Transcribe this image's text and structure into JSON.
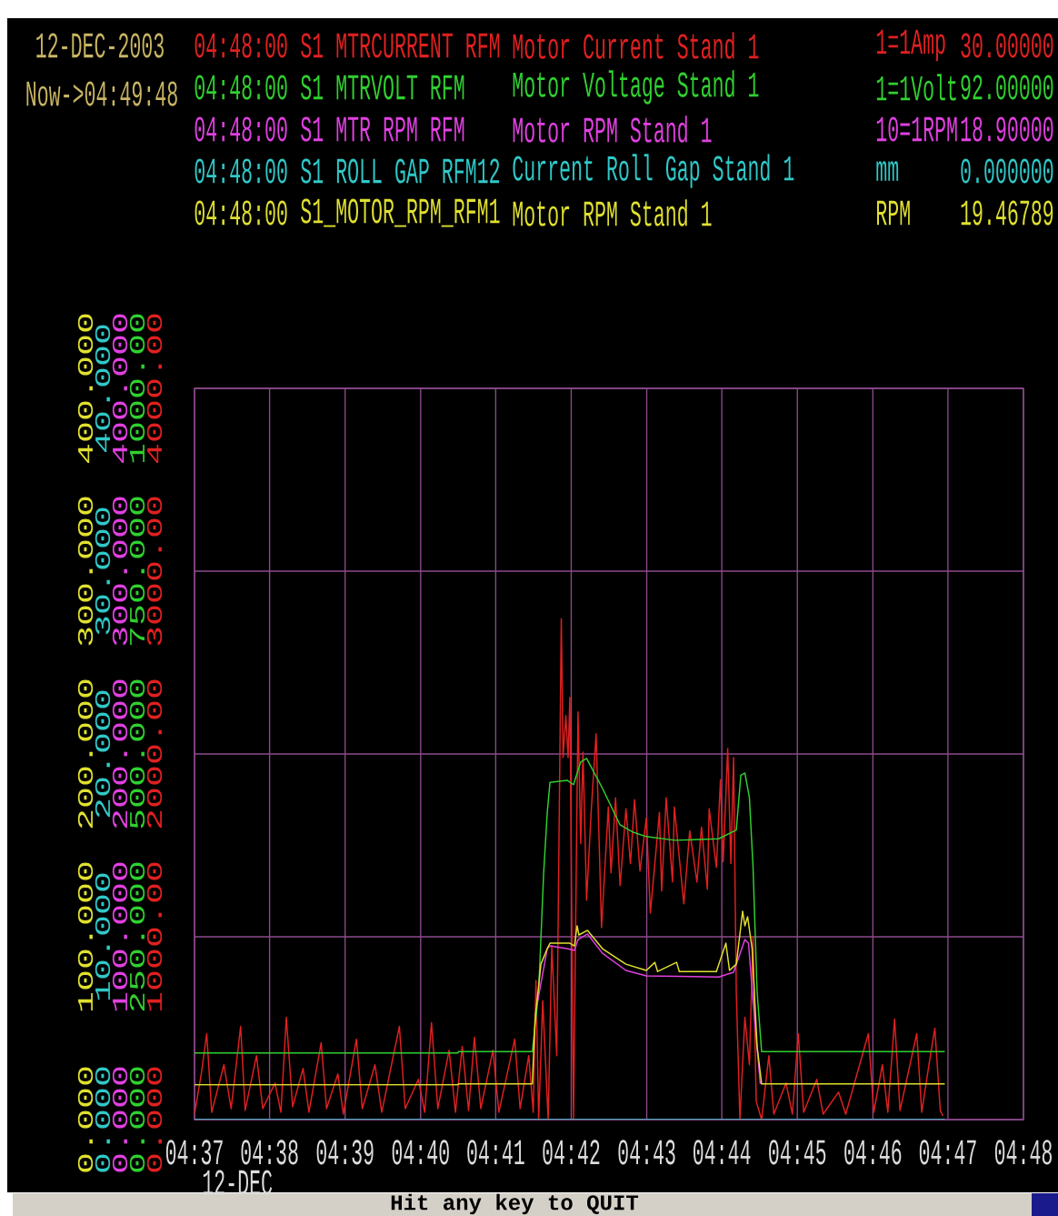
{
  "chart_data": {
    "type": "line",
    "annotations": [
      "12-DEC-2003",
      "Now->04:49:48",
      "04:48:00",
      "S1 MTRCURRENT RFM",
      "1=1Amp",
      "30.00000",
      "04:48:00",
      "S1 MTRVOLT RFM",
      "1=1Volt",
      "92.00000",
      "04:48:00",
      "S1 MTR RPM RFM",
      "10=1RPM",
      "18.90000",
      "04:48:00",
      "S1 ROLL GAP RFM12",
      "mm",
      "0.000000",
      "04:48:00",
      "S1_MOTOR_RPM_RFM1",
      "RPM",
      "19.46789",
      "12-DEC",
      "Hit any key to QUIT",
      "0.000",
      "10.000",
      "20.000",
      "30.000",
      "40.000"
    ],
    "xlim": [
      4.6167,
      4.8
    ],
    "xticks": [
      {
        "value": 4.6167,
        "label": "04:37"
      },
      {
        "value": 4.6333,
        "label": "04:38"
      },
      {
        "value": 4.65,
        "label": "04:39"
      },
      {
        "value": 4.6667,
        "label": "04:40"
      },
      {
        "value": 4.6833,
        "label": "04:41"
      },
      {
        "value": 4.7,
        "label": "04:42"
      },
      {
        "value": 4.7167,
        "label": "04:43"
      },
      {
        "value": 4.7333,
        "label": "04:44"
      },
      {
        "value": 4.75,
        "label": "04:45"
      },
      {
        "value": 4.7667,
        "label": "04:46"
      },
      {
        "value": 4.7833,
        "label": "04:47"
      },
      {
        "value": 4.8,
        "label": "04:48"
      }
    ],
    "ylim": [
      0,
      4000
    ],
    "yticks": [
      {
        "value": 0,
        "label": "0.000"
      },
      {
        "value": 1000,
        "label": "1000.00"
      },
      {
        "value": 2000,
        "label": "2000.00"
      },
      {
        "value": 3000,
        "label": "3000.00"
      },
      {
        "value": 4000,
        "label": "4000.00"
      }
    ],
    "y2lim": [
      0,
      1000
    ],
    "y2ticks": [
      {
        "value": 0,
        "label": "0.000"
      },
      {
        "value": 250,
        "label": "250.000"
      },
      {
        "value": 500,
        "label": "500.000"
      },
      {
        "value": 750,
        "label": "750.000"
      },
      {
        "value": 1000,
        "label": "1000.00"
      }
    ],
    "y3lim": [
      0,
      400
    ],
    "y3ticks": [
      {
        "value": 0,
        "label": "0.000"
      },
      {
        "value": 100,
        "label": "100.000"
      },
      {
        "value": 200,
        "label": "200.000"
      },
      {
        "value": 300,
        "label": "300.000"
      },
      {
        "value": 400,
        "label": "400.000"
      }
    ],
    "grid": true,
    "series": [
      {
        "name": "Motor Current Stand 1",
        "color": "#e02020",
        "x": [
          4.6167,
          4.6182,
          4.6194,
          4.6205,
          4.6232,
          4.6248,
          4.6269,
          4.6279,
          4.6304,
          4.6318,
          4.6345,
          4.6358,
          4.637,
          4.6384,
          4.6407,
          4.642,
          4.6447,
          4.6459,
          4.6484,
          4.6496,
          4.6525,
          4.6538,
          4.6566,
          4.6581,
          4.662,
          4.6633,
          4.6662,
          4.6676,
          4.6691,
          4.6705,
          4.673,
          4.6744,
          4.6759,
          4.6773,
          4.6786,
          4.68,
          4.6827,
          4.684,
          4.6875,
          4.6887,
          4.6906,
          4.6916,
          4.6922,
          4.6928,
          4.6937,
          4.6949,
          4.6957,
          4.6968,
          4.6978,
          4.6982,
          4.6988,
          4.6993,
          4.6997,
          4.7005,
          4.7015,
          4.7021,
          4.7026,
          4.7034,
          4.7044,
          4.7055,
          4.7067,
          4.7082,
          4.7088,
          4.7098,
          4.7108,
          4.7121,
          4.7131,
          4.714,
          4.7152,
          4.7166,
          4.7175,
          4.7195,
          4.72,
          4.721,
          4.7224,
          4.7228,
          4.7249,
          4.7262,
          4.7278,
          4.7288,
          4.7301,
          4.7305,
          4.7321,
          4.733,
          4.7336,
          4.7346,
          4.7353,
          4.7359,
          4.7365,
          4.7373,
          4.7384,
          4.7394,
          4.7402,
          4.7409,
          4.7421,
          4.7437,
          4.7448,
          4.7475,
          4.7489,
          4.7502,
          4.7514,
          4.7543,
          4.7557,
          4.7591,
          4.7607,
          4.7657,
          4.7669,
          4.7688,
          4.77,
          4.7715,
          4.7727,
          4.7764,
          4.7775,
          4.7791,
          4.7804,
          4.7816,
          4.7822
        ],
        "values": [
          30,
          250,
          470,
          40,
          300,
          60,
          510,
          50,
          350,
          60,
          200,
          40,
          560,
          70,
          280,
          40,
          420,
          60,
          250,
          30,
          440,
          60,
          300,
          40,
          510,
          60,
          220,
          40,
          530,
          60,
          380,
          40,
          400,
          50,
          450,
          60,
          380,
          40,
          440,
          60,
          350,
          40,
          760,
          0,
          650,
          0,
          950,
          350,
          2740,
          1980,
          2210,
          1980,
          2310,
          0,
          2230,
          1510,
          2010,
          1200,
          1680,
          2110,
          1050,
          1710,
          1350,
          1760,
          1280,
          1700,
          1400,
          1750,
          1360,
          1650,
          1130,
          1680,
          1250,
          1760,
          1300,
          1710,
          1180,
          1580,
          1300,
          1600,
          1260,
          1700,
          1380,
          1860,
          1410,
          2030,
          1400,
          1980,
          700,
          0,
          560,
          300,
          1000,
          100,
          0,
          350,
          30,
          200,
          30,
          470,
          40,
          220,
          30,
          150,
          30,
          470,
          40,
          300,
          40,
          550,
          50,
          470,
          40,
          300,
          500,
          50,
          20
        ]
      },
      {
        "name": "Motor Voltage Stand 1",
        "color": "#30d030",
        "axis": "y2",
        "x": [
          4.6167,
          4.6749,
          4.6751,
          4.6914,
          4.6928,
          4.6939,
          4.6947,
          4.6953,
          4.6991,
          4.7005,
          4.7021,
          4.7034,
          4.7069,
          4.7108,
          4.7137,
          4.7166,
          4.7229,
          4.7326,
          4.7365,
          4.7375,
          4.7384,
          4.7394,
          4.7402,
          4.7411,
          4.7421,
          4.7826
        ],
        "values": [
          91,
          91,
          93,
          93,
          175,
          337,
          420,
          461,
          464,
          458,
          489,
          494,
          453,
          403,
          393,
          387,
          382,
          384,
          396,
          471,
          474,
          440,
          346,
          175,
          93,
          93
        ]
      },
      {
        "name": "Motor RPM Stand 1",
        "color": "#e040e0",
        "axis": "y3",
        "x": [
          4.6926,
          4.6947,
          4.6953,
          4.6991,
          4.7007,
          4.7015,
          4.7036,
          4.7069,
          4.7121,
          4.7166,
          4.7326,
          4.7359,
          4.7384,
          4.7392,
          4.7402,
          4.7418
        ],
        "values": [
          65,
          93.5,
          95,
          93.5,
          92.5,
          98.5,
          101.5,
          91,
          81.6,
          78.6,
          78,
          80.6,
          98.5,
          96.5,
          65,
          19.5
        ]
      },
      {
        "name": "Current Roll Gap Stand 1",
        "color": "#30c8c8",
        "axis": "y3",
        "x": [
          4.6167,
          4.7826
        ],
        "values": [
          0,
          0
        ]
      },
      {
        "name": "Motor RPM Stand 1",
        "color": "#e0e030",
        "axis": "y3",
        "x": [
          4.6167,
          4.6749,
          4.6751,
          4.6914,
          4.692,
          4.6933,
          4.6947,
          4.6953,
          4.6997,
          4.7007,
          4.7013,
          4.7017,
          4.7036,
          4.7069,
          4.7121,
          4.7166,
          4.7185,
          4.7191,
          4.7233,
          4.7239,
          4.7321,
          4.7342,
          4.735,
          4.7365,
          4.7379,
          4.7384,
          4.739,
          4.74,
          4.7411,
          4.7421,
          4.7826
        ],
        "values": [
          19,
          19,
          19.5,
          19.5,
          55,
          85,
          93.5,
          96.5,
          96.5,
          95,
          106,
          101,
          103.5,
          93.5,
          85,
          81.6,
          86,
          81,
          86,
          81,
          81,
          96.5,
          81.6,
          85,
          114,
          106,
          111,
          93.5,
          40,
          19.5,
          19.5
        ]
      }
    ]
  }
}
